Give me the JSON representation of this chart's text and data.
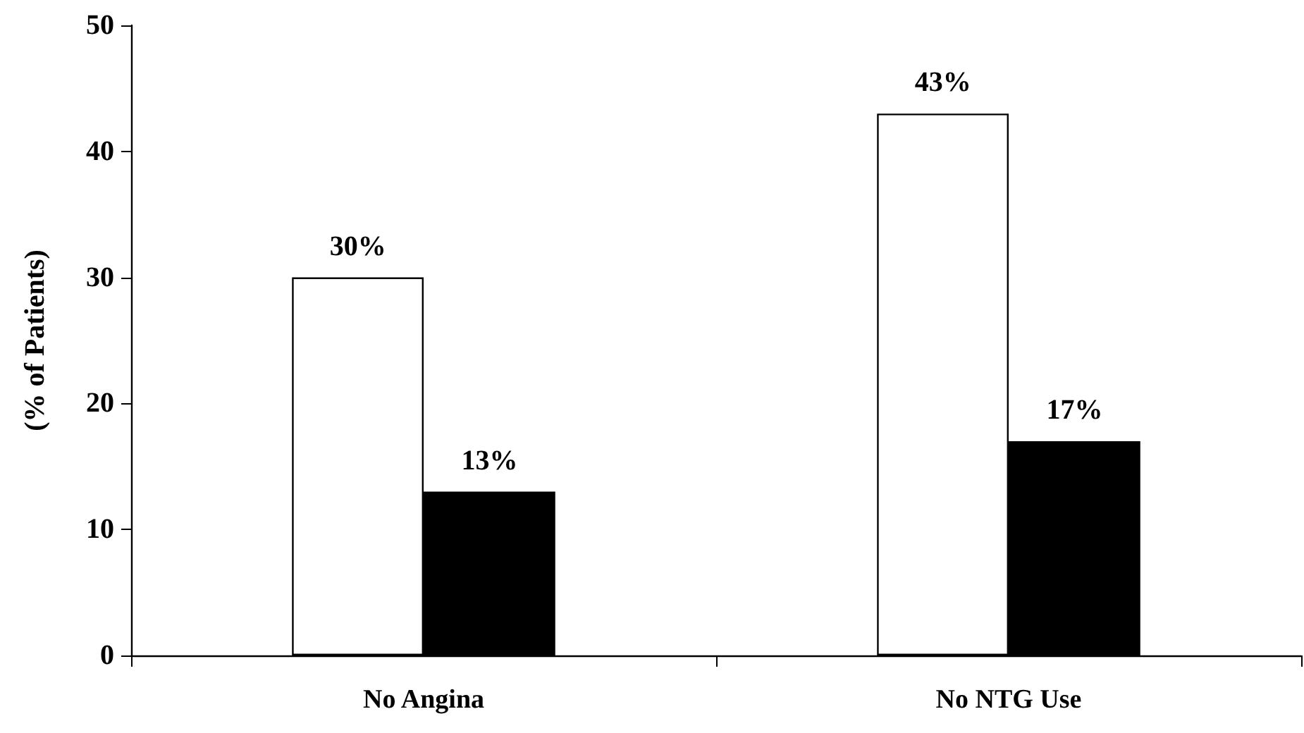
{
  "chart_data": {
    "type": "bar",
    "ylabel": "(% of Patients)",
    "categories": [
      "No Angina",
      "No NTG Use"
    ],
    "series": [
      {
        "color": "#ffffff",
        "values": [
          30,
          43
        ],
        "value_labels": [
          "30%",
          "43%"
        ]
      },
      {
        "color": "#000000",
        "values": [
          13,
          17
        ],
        "value_labels": [
          "13%",
          "17%"
        ]
      }
    ],
    "ylim": [
      0,
      50
    ],
    "yticks": [
      0,
      10,
      20,
      30,
      40,
      50
    ],
    "grid": false
  }
}
